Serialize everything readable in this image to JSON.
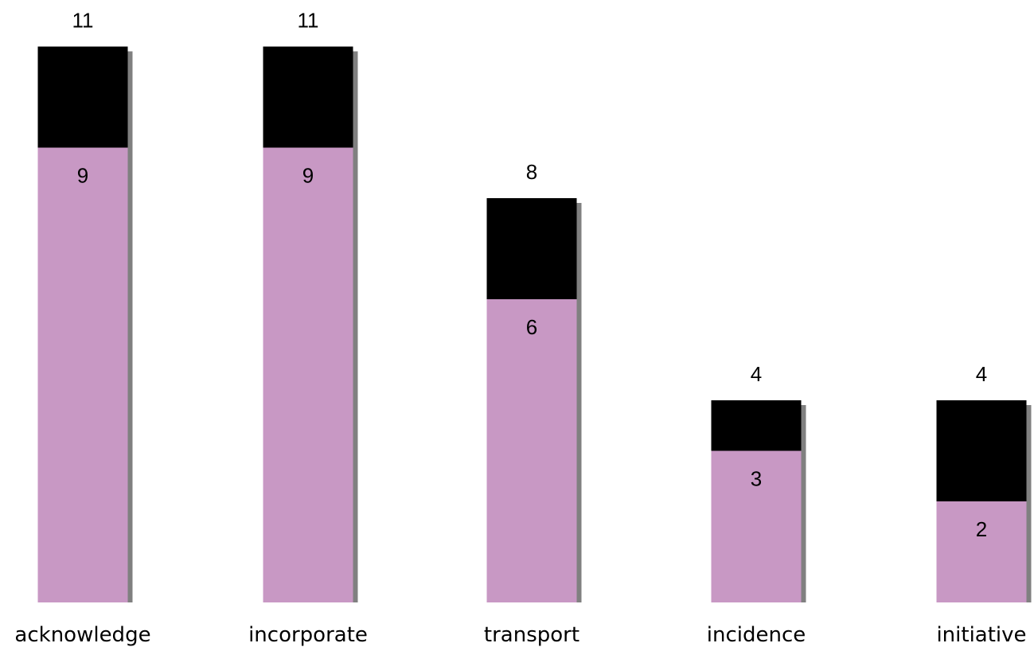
{
  "chart_data": {
    "type": "bar",
    "stacked": true,
    "categories": [
      "acknowledge",
      "incorporate",
      "transport",
      "incidence",
      "initiative"
    ],
    "series": [
      {
        "values": [
          9,
          9,
          6,
          3,
          2
        ],
        "color": "#C898C4"
      },
      {
        "values": [
          2,
          2,
          2,
          1,
          2
        ],
        "color": "#000000"
      }
    ],
    "totals": [
      11,
      11,
      8,
      4,
      4
    ],
    "shadow_color": "#808080",
    "grid": false,
    "legend": "none"
  }
}
